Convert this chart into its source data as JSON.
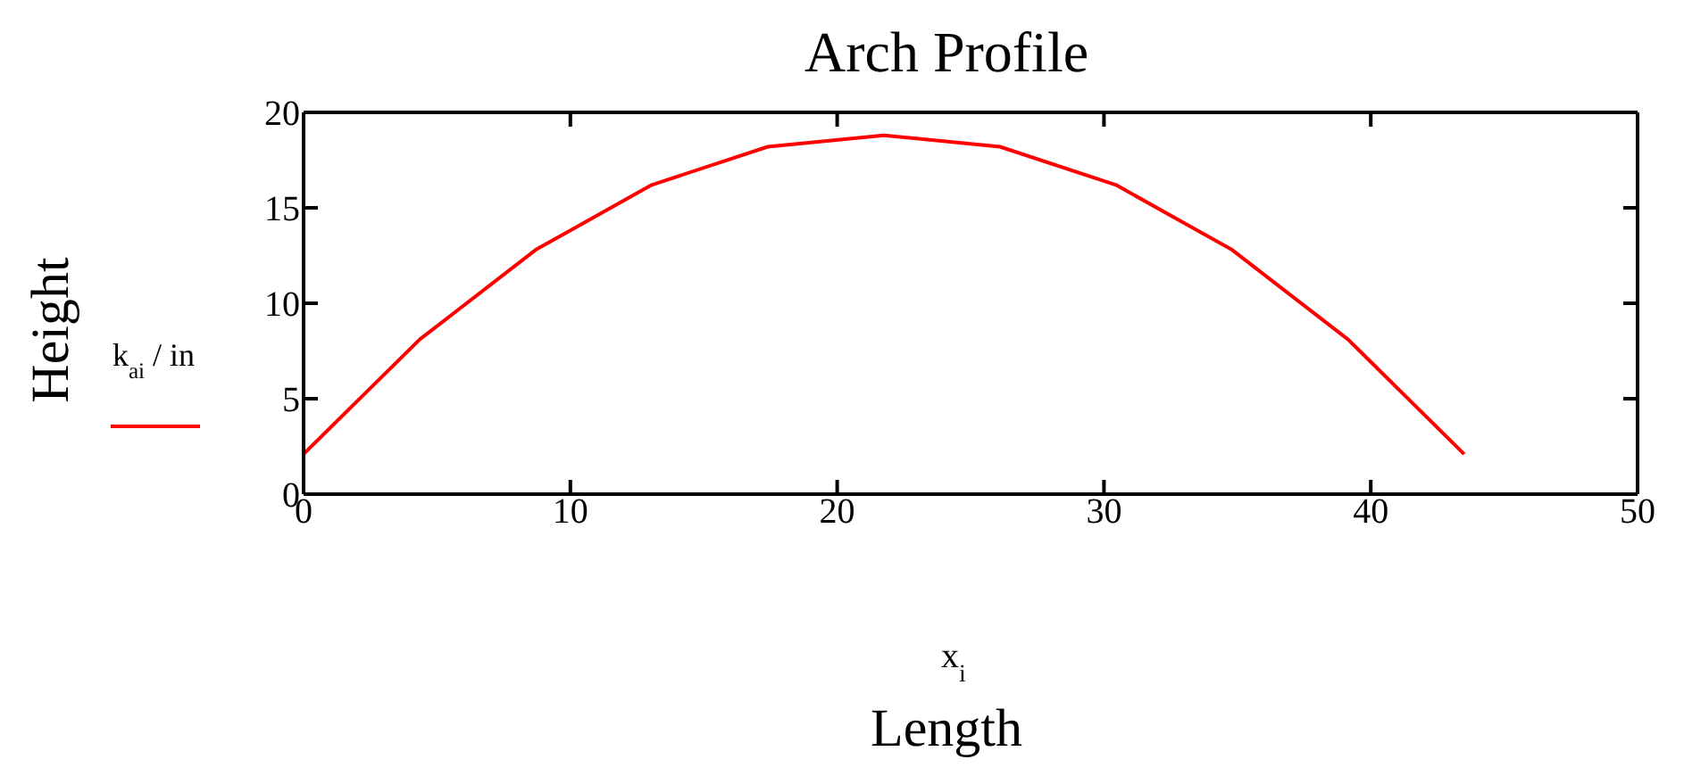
{
  "chart_data": {
    "type": "line",
    "title": "Arch Profile",
    "xlabel": "Length",
    "ylabel": "Height",
    "annotations": [
      "x$_{i}$"
    ],
    "x": [
      0,
      4.35,
      8.7,
      13.05,
      17.4,
      21.75,
      26.1,
      30.45,
      34.8,
      39.15,
      43.5
    ],
    "series": [
      {
        "name": "k$_{a}$$_{i}$ / in",
        "color": "#ff0000",
        "values": [
          2.1,
          8.1,
          12.8,
          16.2,
          18.2,
          18.8,
          18.2,
          16.2,
          12.8,
          8.1,
          2.1
        ]
      }
    ],
    "xlim": [
      0,
      50
    ],
    "xticks": [
      0,
      10,
      20,
      30,
      40,
      50
    ],
    "ylim": [
      0,
      20
    ],
    "yticks": [
      0,
      5,
      10,
      15,
      20
    ],
    "legend": "left",
    "grid": false,
    "marker": "none",
    "line_style": "solid"
  }
}
